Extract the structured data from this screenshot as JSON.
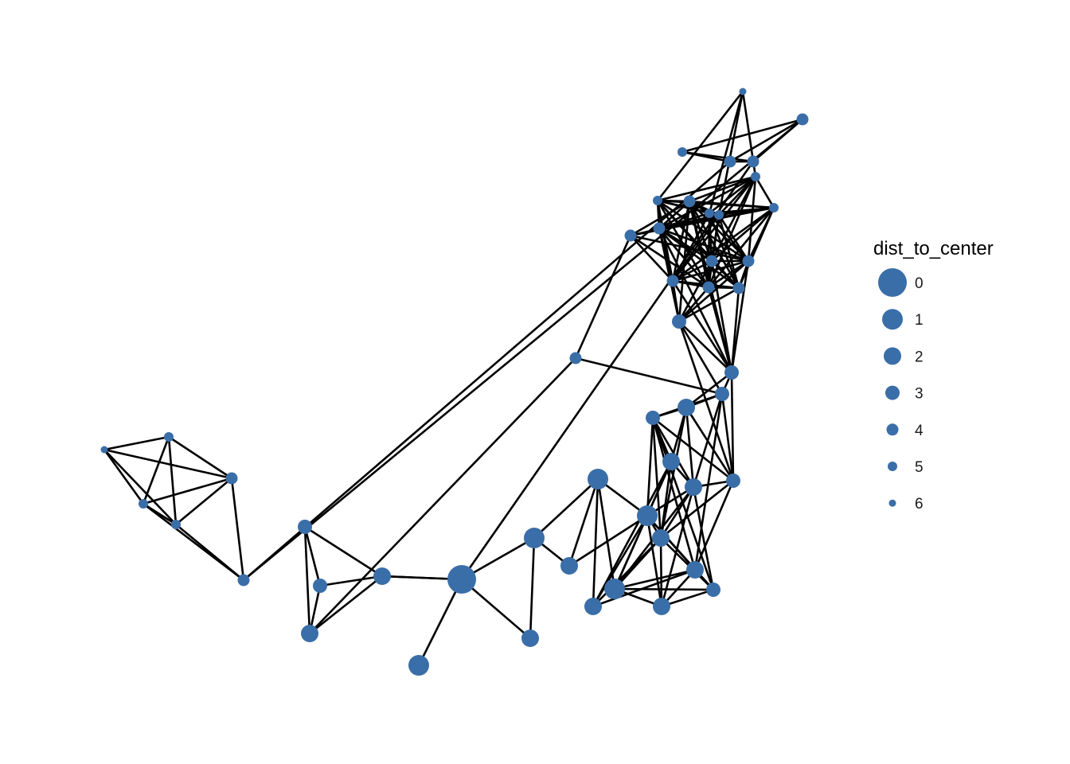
{
  "legend": {
    "title": "dist_to_center",
    "entries": [
      {
        "label": "0",
        "value": 0
      },
      {
        "label": "1",
        "value": 1
      },
      {
        "label": "2",
        "value": 2
      },
      {
        "label": "3",
        "value": 3
      },
      {
        "label": "4",
        "value": 4
      },
      {
        "label": "5",
        "value": 5
      },
      {
        "label": "6",
        "value": 6
      }
    ]
  },
  "colors": {
    "node": "#3a6ea8",
    "edge": "#000000"
  },
  "graph": {
    "nodes": [
      {
        "id": "n0",
        "dist": 0
      },
      {
        "id": "n1",
        "dist": 1
      },
      {
        "id": "n2",
        "dist": 2
      },
      {
        "id": "n3",
        "dist": 1
      },
      {
        "id": "n4",
        "dist": 1
      },
      {
        "id": "n5",
        "dist": 2
      },
      {
        "id": "n6",
        "dist": 1
      },
      {
        "id": "n7",
        "dist": 1
      },
      {
        "id": "n8",
        "dist": 2
      },
      {
        "id": "n9",
        "dist": 2
      },
      {
        "id": "n10",
        "dist": 2
      },
      {
        "id": "n11",
        "dist": 2
      },
      {
        "id": "n12",
        "dist": 3
      },
      {
        "id": "n13",
        "dist": 2
      },
      {
        "id": "n14",
        "dist": 2
      },
      {
        "id": "n15",
        "dist": 3
      },
      {
        "id": "n16",
        "dist": 2
      },
      {
        "id": "n17",
        "dist": 3
      },
      {
        "id": "n18",
        "dist": 3
      },
      {
        "id": "n19",
        "dist": 3
      },
      {
        "id": "n20",
        "dist": 3
      },
      {
        "id": "n21",
        "dist": 4
      },
      {
        "id": "n22",
        "dist": 4
      },
      {
        "id": "n23",
        "dist": 4
      },
      {
        "id": "n24",
        "dist": 4
      },
      {
        "id": "n25",
        "dist": 4
      },
      {
        "id": "n26",
        "dist": 4
      },
      {
        "id": "n27",
        "dist": 4
      },
      {
        "id": "n28",
        "dist": 5
      },
      {
        "id": "n29",
        "dist": 5
      },
      {
        "id": "n30",
        "dist": 5
      },
      {
        "id": "n31",
        "dist": 5
      },
      {
        "id": "n32",
        "dist": 6
      },
      {
        "id": "n33",
        "dist": 5
      },
      {
        "id": "n34",
        "dist": 2
      },
      {
        "id": "n35",
        "dist": 3
      },
      {
        "id": "n36",
        "dist": 4
      },
      {
        "id": "n37",
        "dist": 4
      },
      {
        "id": "n38",
        "dist": 4
      },
      {
        "id": "n39",
        "dist": 5
      },
      {
        "id": "n40",
        "dist": 4
      },
      {
        "id": "n41",
        "dist": 4
      },
      {
        "id": "n42",
        "dist": 2
      },
      {
        "id": "n43",
        "dist": 3
      },
      {
        "id": "n44",
        "dist": 4
      },
      {
        "id": "n45",
        "dist": 4
      },
      {
        "id": "n46",
        "dist": 5
      },
      {
        "id": "n47",
        "dist": 5
      },
      {
        "id": "n48",
        "dist": 6
      },
      {
        "id": "n49",
        "dist": 5
      }
    ],
    "edges": [
      [
        "n0",
        "n1"
      ],
      [
        "n0",
        "n2"
      ],
      [
        "n0",
        "n3"
      ],
      [
        "n1",
        "n2"
      ],
      [
        "n1",
        "n4"
      ],
      [
        "n1",
        "n5"
      ],
      [
        "n4",
        "n5"
      ],
      [
        "n4",
        "n6"
      ],
      [
        "n4",
        "n7"
      ],
      [
        "n4",
        "n8"
      ],
      [
        "n5",
        "n7"
      ],
      [
        "n6",
        "n7"
      ],
      [
        "n6",
        "n9"
      ],
      [
        "n6",
        "n10"
      ],
      [
        "n6",
        "n11"
      ],
      [
        "n6",
        "n12"
      ],
      [
        "n6",
        "n13"
      ],
      [
        "n6",
        "n14"
      ],
      [
        "n7",
        "n8"
      ],
      [
        "n7",
        "n9"
      ],
      [
        "n7",
        "n10"
      ],
      [
        "n7",
        "n11"
      ],
      [
        "n7",
        "n12"
      ],
      [
        "n7",
        "n13"
      ],
      [
        "n7",
        "n14"
      ],
      [
        "n7",
        "n15"
      ],
      [
        "n8",
        "n10"
      ],
      [
        "n8",
        "n11"
      ],
      [
        "n8",
        "n14"
      ],
      [
        "n9",
        "n11"
      ],
      [
        "n9",
        "n12"
      ],
      [
        "n9",
        "n13"
      ],
      [
        "n9",
        "n14"
      ],
      [
        "n10",
        "n11"
      ],
      [
        "n10",
        "n13"
      ],
      [
        "n10",
        "n15"
      ],
      [
        "n10",
        "n16"
      ],
      [
        "n11",
        "n12"
      ],
      [
        "n11",
        "n13"
      ],
      [
        "n11",
        "n15"
      ],
      [
        "n11",
        "n16"
      ],
      [
        "n11",
        "n17"
      ],
      [
        "n12",
        "n13"
      ],
      [
        "n12",
        "n14"
      ],
      [
        "n12",
        "n15"
      ],
      [
        "n13",
        "n15"
      ],
      [
        "n13",
        "n16"
      ],
      [
        "n13",
        "n17"
      ],
      [
        "n13",
        "n18"
      ],
      [
        "n14",
        "n15"
      ],
      [
        "n14",
        "n17"
      ],
      [
        "n14",
        "n18"
      ],
      [
        "n15",
        "n16"
      ],
      [
        "n15",
        "n17"
      ],
      [
        "n15",
        "n18"
      ],
      [
        "n16",
        "n17"
      ],
      [
        "n16",
        "n18"
      ],
      [
        "n16",
        "n19"
      ],
      [
        "n17",
        "n18"
      ],
      [
        "n17",
        "n19"
      ],
      [
        "n17",
        "n20"
      ],
      [
        "n18",
        "n19"
      ],
      [
        "n18",
        "n20"
      ],
      [
        "n18",
        "n36"
      ],
      [
        "n19",
        "n20"
      ],
      [
        "n19",
        "n21"
      ],
      [
        "n19",
        "n22"
      ],
      [
        "n19",
        "n23"
      ],
      [
        "n19",
        "n24"
      ],
      [
        "n19",
        "n25"
      ],
      [
        "n19",
        "n26"
      ],
      [
        "n19",
        "n27"
      ],
      [
        "n20",
        "n21"
      ],
      [
        "n20",
        "n22"
      ],
      [
        "n20",
        "n23"
      ],
      [
        "n20",
        "n24"
      ],
      [
        "n20",
        "n25"
      ],
      [
        "n20",
        "n26"
      ],
      [
        "n20",
        "n27"
      ],
      [
        "n20",
        "n30"
      ],
      [
        "n21",
        "n22"
      ],
      [
        "n21",
        "n23"
      ],
      [
        "n21",
        "n24"
      ],
      [
        "n21",
        "n25"
      ],
      [
        "n21",
        "n26"
      ],
      [
        "n21",
        "n27"
      ],
      [
        "n21",
        "n28"
      ],
      [
        "n21",
        "n29"
      ],
      [
        "n21",
        "n30"
      ],
      [
        "n21",
        "n31"
      ],
      [
        "n21",
        "n33"
      ],
      [
        "n22",
        "n23"
      ],
      [
        "n22",
        "n24"
      ],
      [
        "n22",
        "n25"
      ],
      [
        "n22",
        "n26"
      ],
      [
        "n22",
        "n27"
      ],
      [
        "n22",
        "n28"
      ],
      [
        "n22",
        "n29"
      ],
      [
        "n22",
        "n30"
      ],
      [
        "n22",
        "n31"
      ],
      [
        "n23",
        "n24"
      ],
      [
        "n23",
        "n25"
      ],
      [
        "n23",
        "n26"
      ],
      [
        "n23",
        "n27"
      ],
      [
        "n23",
        "n28"
      ],
      [
        "n23",
        "n29"
      ],
      [
        "n23",
        "n30"
      ],
      [
        "n23",
        "n31"
      ],
      [
        "n23",
        "n33"
      ],
      [
        "n24",
        "n25"
      ],
      [
        "n24",
        "n26"
      ],
      [
        "n24",
        "n27"
      ],
      [
        "n24",
        "n28"
      ],
      [
        "n24",
        "n29"
      ],
      [
        "n24",
        "n30"
      ],
      [
        "n24",
        "n31"
      ],
      [
        "n24",
        "n33"
      ],
      [
        "n25",
        "n26"
      ],
      [
        "n25",
        "n27"
      ],
      [
        "n25",
        "n28"
      ],
      [
        "n25",
        "n29"
      ],
      [
        "n25",
        "n30"
      ],
      [
        "n25",
        "n31"
      ],
      [
        "n25",
        "n33"
      ],
      [
        "n26",
        "n27"
      ],
      [
        "n26",
        "n28"
      ],
      [
        "n26",
        "n29"
      ],
      [
        "n26",
        "n30"
      ],
      [
        "n26",
        "n31"
      ],
      [
        "n26",
        "n33"
      ],
      [
        "n27",
        "n28"
      ],
      [
        "n27",
        "n29"
      ],
      [
        "n27",
        "n30"
      ],
      [
        "n27",
        "n31"
      ],
      [
        "n27",
        "n33"
      ],
      [
        "n28",
        "n29"
      ],
      [
        "n28",
        "n30"
      ],
      [
        "n28",
        "n31"
      ],
      [
        "n28",
        "n32"
      ],
      [
        "n28",
        "n33"
      ],
      [
        "n29",
        "n30"
      ],
      [
        "n29",
        "n31"
      ],
      [
        "n29",
        "n32"
      ],
      [
        "n29",
        "n33"
      ],
      [
        "n30",
        "n31"
      ],
      [
        "n30",
        "n32"
      ],
      [
        "n30",
        "n33"
      ],
      [
        "n31",
        "n33"
      ],
      [
        "n32",
        "n33"
      ],
      [
        "n36",
        "n37"
      ],
      [
        "n37",
        "n27"
      ],
      [
        "n37",
        "n31"
      ],
      [
        "n37",
        "n29"
      ],
      [
        "n37",
        "n25"
      ],
      [
        "n37",
        "n23"
      ],
      [
        "n37",
        "n21"
      ],
      [
        "n34",
        "n0"
      ],
      [
        "n34",
        "n35"
      ],
      [
        "n34",
        "n42"
      ],
      [
        "n34",
        "n43"
      ],
      [
        "n35",
        "n42"
      ],
      [
        "n35",
        "n43"
      ],
      [
        "n42",
        "n43"
      ],
      [
        "n42",
        "n36"
      ],
      [
        "n0",
        "n38"
      ],
      [
        "n38",
        "n39"
      ],
      [
        "n38",
        "n40"
      ],
      [
        "n38",
        "n41"
      ],
      [
        "n39",
        "n40"
      ],
      [
        "n39",
        "n41"
      ],
      [
        "n40",
        "n41"
      ],
      [
        "n40",
        "n44"
      ],
      [
        "n41",
        "n44"
      ],
      [
        "n44",
        "n45"
      ],
      [
        "n44",
        "n46"
      ],
      [
        "n44",
        "n47"
      ],
      [
        "n45",
        "n46"
      ],
      [
        "n45",
        "n47"
      ],
      [
        "n45",
        "n48"
      ],
      [
        "n45",
        "n49"
      ],
      [
        "n46",
        "n47"
      ],
      [
        "n46",
        "n48"
      ],
      [
        "n46",
        "n49"
      ],
      [
        "n47",
        "n49"
      ],
      [
        "n48",
        "n49"
      ],
      [
        "n47",
        "n48"
      ],
      [
        "n0",
        "n34"
      ]
    ]
  }
}
